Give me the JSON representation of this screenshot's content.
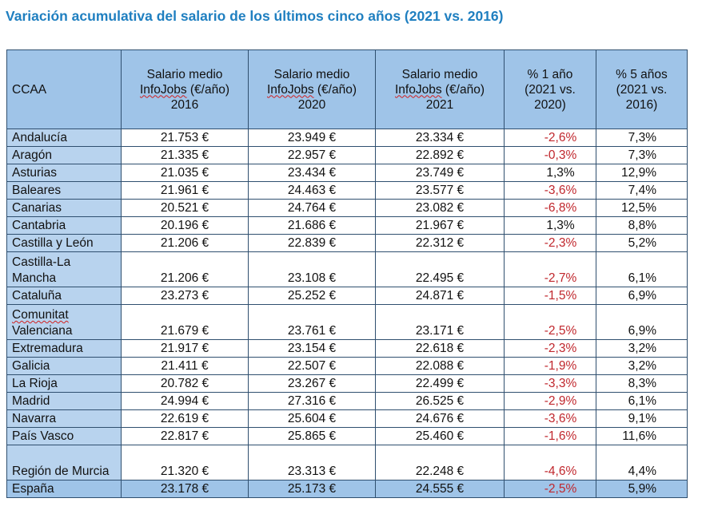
{
  "title": "Variación acumulativa del salario de los últimos cinco años (2021 vs. 2016)",
  "table": {
    "headers": {
      "ccaa": "CCAA",
      "col2016": {
        "pre": "Salario medio",
        "brand": "InfoJobs",
        "post": " (€/año)",
        "year": "2016"
      },
      "col2020": {
        "pre": "Salario medio",
        "brand": "InfoJobs",
        "post": " (€/año)",
        "year": "2020"
      },
      "col2021": {
        "pre": "Salario medio",
        "brand": "InfoJobs",
        "post": " (€/año)",
        "year": "2021"
      },
      "pct1": {
        "l1": "% 1 año",
        "l2": "(2021 vs.",
        "l3": "2020)"
      },
      "pct5": {
        "l1": "% 5 años",
        "l2": "(2021 vs.",
        "l3": "2016)"
      }
    },
    "rows": [
      {
        "ccaa": "Andalucía",
        "s2016": "21.753 €",
        "s2020": "23.949 €",
        "s2021": "23.334 €",
        "p1": "-2,6%",
        "p5": "7,3%"
      },
      {
        "ccaa": "Aragón",
        "s2016": "21.335 €",
        "s2020": "22.957 €",
        "s2021": "22.892 €",
        "p1": "-0,3%",
        "p5": "7,3%"
      },
      {
        "ccaa": "Asturias",
        "s2016": "21.035 €",
        "s2020": "23.434 €",
        "s2021": "23.749 €",
        "p1": "1,3%",
        "p5": "12,9%"
      },
      {
        "ccaa": "Baleares",
        "s2016": "21.961 €",
        "s2020": "24.463 €",
        "s2021": "23.577 €",
        "p1": "-3,6%",
        "p5": "7,4%"
      },
      {
        "ccaa": "Canarias",
        "s2016": "20.521 €",
        "s2020": "24.764 €",
        "s2021": "23.082 €",
        "p1": "-6,8%",
        "p5": "12,5%"
      },
      {
        "ccaa": "Cantabria",
        "s2016": "20.196 €",
        "s2020": "21.686 €",
        "s2021": "21.967 €",
        "p1": "1,3%",
        "p5": "8,8%"
      },
      {
        "ccaa": "Castilla y León",
        "s2016": "21.206 €",
        "s2020": "22.839 €",
        "s2021": "22.312 €",
        "p1": "-2,3%",
        "p5": "5,2%"
      },
      {
        "ccaa": "Castilla-La Mancha",
        "s2016": "21.206 €",
        "s2020": "23.108 €",
        "s2021": "22.495 €",
        "p1": "-2,7%",
        "p5": "6,1%"
      },
      {
        "ccaa": "Cataluña",
        "s2016": "23.273 €",
        "s2020": "25.252 €",
        "s2021": "24.871 €",
        "p1": "-1,5%",
        "p5": "6,9%"
      },
      {
        "ccaa": "Comunitat Valenciana",
        "s2016": "21.679 €",
        "s2020": "23.761 €",
        "s2021": "23.171 €",
        "p1": "-2,5%",
        "p5": "6,9%"
      },
      {
        "ccaa": "Extremadura",
        "s2016": "21.917 €",
        "s2020": "23.154 €",
        "s2021": "22.618 €",
        "p1": "-2,3%",
        "p5": "3,2%"
      },
      {
        "ccaa": "Galicia",
        "s2016": "21.411 €",
        "s2020": "22.507 €",
        "s2021": "22.088 €",
        "p1": "-1,9%",
        "p5": "3,2%"
      },
      {
        "ccaa": "La Rioja",
        "s2016": "20.782 €",
        "s2020": "23.267 €",
        "s2021": "22.499 €",
        "p1": "-3,3%",
        "p5": "8,3%"
      },
      {
        "ccaa": "Madrid",
        "s2016": "24.994 €",
        "s2020": "27.316 €",
        "s2021": "26.525 €",
        "p1": "-2,9%",
        "p5": "6,1%"
      },
      {
        "ccaa": "Navarra",
        "s2016": "22.619 €",
        "s2020": "25.604 €",
        "s2021": "24.676 €",
        "p1": "-3,6%",
        "p5": "9,1%"
      },
      {
        "ccaa": "País Vasco",
        "s2016": "22.817 €",
        "s2020": "25.865 €",
        "s2021": "25.460 €",
        "p1": "-1,6%",
        "p5": "11,6%"
      },
      {
        "ccaa": "Región de Murcia",
        "s2016": "21.320 €",
        "s2020": "23.313 €",
        "s2021": "22.248 €",
        "p1": "-4,6%",
        "p5": "4,4%"
      },
      {
        "ccaa": "España",
        "s2016": "23.178 €",
        "s2020": "25.173 €",
        "s2021": "24.555 €",
        "p1": "-2,5%",
        "p5": "5,9%"
      }
    ]
  },
  "colors": {
    "title": "#1f7fc0",
    "header_bg": "#9fc4e8",
    "name_bg": "#b8d3ee",
    "negative": "#c0272d",
    "border": "#2f4f6f"
  }
}
